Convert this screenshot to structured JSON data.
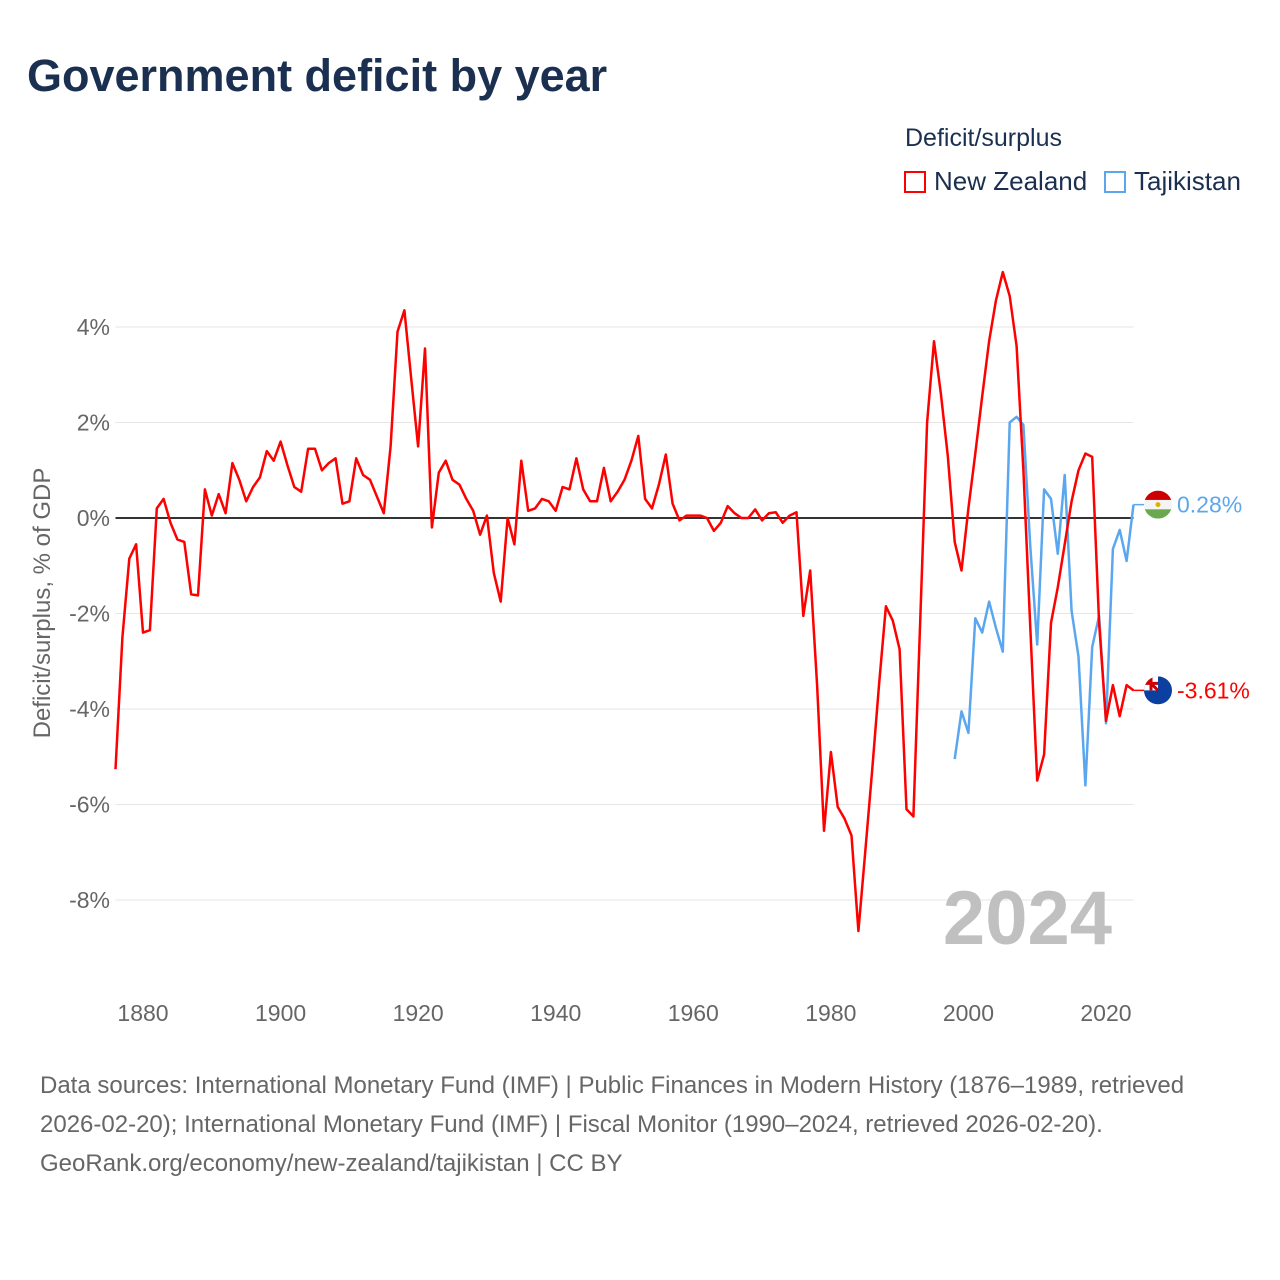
{
  "title": "Government deficit by year",
  "legend": {
    "title": "Deficit/surplus",
    "items": [
      {
        "name": "New Zealand",
        "color": "#ff0000"
      },
      {
        "name": "Tajikistan",
        "color": "#5ba7ef"
      }
    ]
  },
  "year_label": "2024",
  "chart_data": {
    "type": "line",
    "title": "Government deficit by year",
    "xlabel": "",
    "ylabel": "Deficit/surplus, % of GDP",
    "xlim": [
      1876,
      2024
    ],
    "ylim": [
      -9.5,
      5.5
    ],
    "xticks": [
      1880,
      1900,
      1920,
      1940,
      1960,
      1980,
      2000,
      2020
    ],
    "yticks": [
      4,
      2,
      0,
      -2,
      -4,
      -6,
      -8
    ],
    "ytick_labels": [
      "4%",
      "2%",
      "0%",
      "-2%",
      "-4%",
      "-6%",
      "-8%"
    ],
    "grid": true,
    "legend_position": "top-right",
    "series": [
      {
        "name": "New Zealand",
        "color": "#ff0000",
        "end_label": "-3.61%",
        "start_year": 1876,
        "values": [
          -5.26,
          -2.5,
          -0.85,
          -0.55,
          -2.4,
          -2.35,
          0.2,
          0.4,
          -0.1,
          -0.45,
          -0.5,
          -1.6,
          -1.62,
          0.6,
          0.05,
          0.5,
          0.1,
          1.15,
          0.8,
          0.35,
          0.65,
          0.85,
          1.4,
          1.2,
          1.6,
          1.1,
          0.65,
          0.55,
          1.45,
          1.45,
          1.0,
          1.15,
          1.25,
          0.3,
          0.35,
          1.25,
          0.9,
          0.8,
          0.45,
          0.1,
          1.5,
          3.9,
          4.35,
          2.9,
          1.5,
          3.55,
          -0.2,
          0.95,
          1.2,
          0.8,
          0.7,
          0.4,
          0.15,
          -0.35,
          0.05,
          -1.15,
          -1.75,
          0.0,
          -0.55,
          1.2,
          0.15,
          0.2,
          0.4,
          0.35,
          0.15,
          0.65,
          0.6,
          1.25,
          0.6,
          0.35,
          0.35,
          1.05,
          0.35,
          0.55,
          0.8,
          1.2,
          1.72,
          0.4,
          0.2,
          0.7,
          1.33,
          0.3,
          -0.05,
          0.05,
          0.05,
          0.05,
          0.0,
          -0.27,
          -0.1,
          0.25,
          0.1,
          0.0,
          0.0,
          0.18,
          -0.05,
          0.1,
          0.12,
          -0.1,
          0.05,
          0.12,
          -2.05,
          -1.1,
          -3.5,
          -6.55,
          -4.9,
          -6.05,
          -6.3,
          -6.65,
          -8.65,
          -7.0,
          -5.3,
          -3.5,
          -1.85,
          -2.15,
          -2.75,
          -6.1,
          -6.25,
          -2.1,
          2.0,
          3.7,
          2.6,
          1.3,
          -0.5,
          -1.1,
          0.2,
          1.35,
          2.55,
          3.7,
          4.55,
          5.15,
          4.65,
          3.6,
          1.0,
          -2.3,
          -5.5,
          -4.95,
          -2.2,
          -1.45,
          -0.55,
          0.35,
          1.0,
          1.35,
          1.28,
          -2.2,
          -4.25,
          -3.5,
          -4.15,
          -3.5,
          -3.61
        ]
      },
      {
        "name": "Tajikistan",
        "color": "#5ba7ef",
        "end_label": "0.28%",
        "start_year": 1998,
        "values": [
          -5.05,
          -4.05,
          -4.5,
          -2.1,
          -2.4,
          -1.75,
          -2.3,
          -2.8,
          2.0,
          2.12,
          1.95,
          -0.6,
          -2.65,
          0.6,
          0.4,
          -0.75,
          0.9,
          -1.95,
          -2.9,
          -5.6,
          -2.7,
          -2.05,
          -4.3,
          -0.65,
          -0.25,
          -0.9,
          0.28
        ]
      }
    ]
  },
  "footer": {
    "sources": "Data sources: International Monetary Fund (IMF) | Public Finances in Modern History (1876–1989, retrieved 2026-02-20); International Monetary Fund (IMF) | Fiscal Monitor (1990–2024, retrieved 2026-02-20).",
    "credit": "GeoRank.org/economy/new-zealand/tajikistan | CC BY"
  }
}
